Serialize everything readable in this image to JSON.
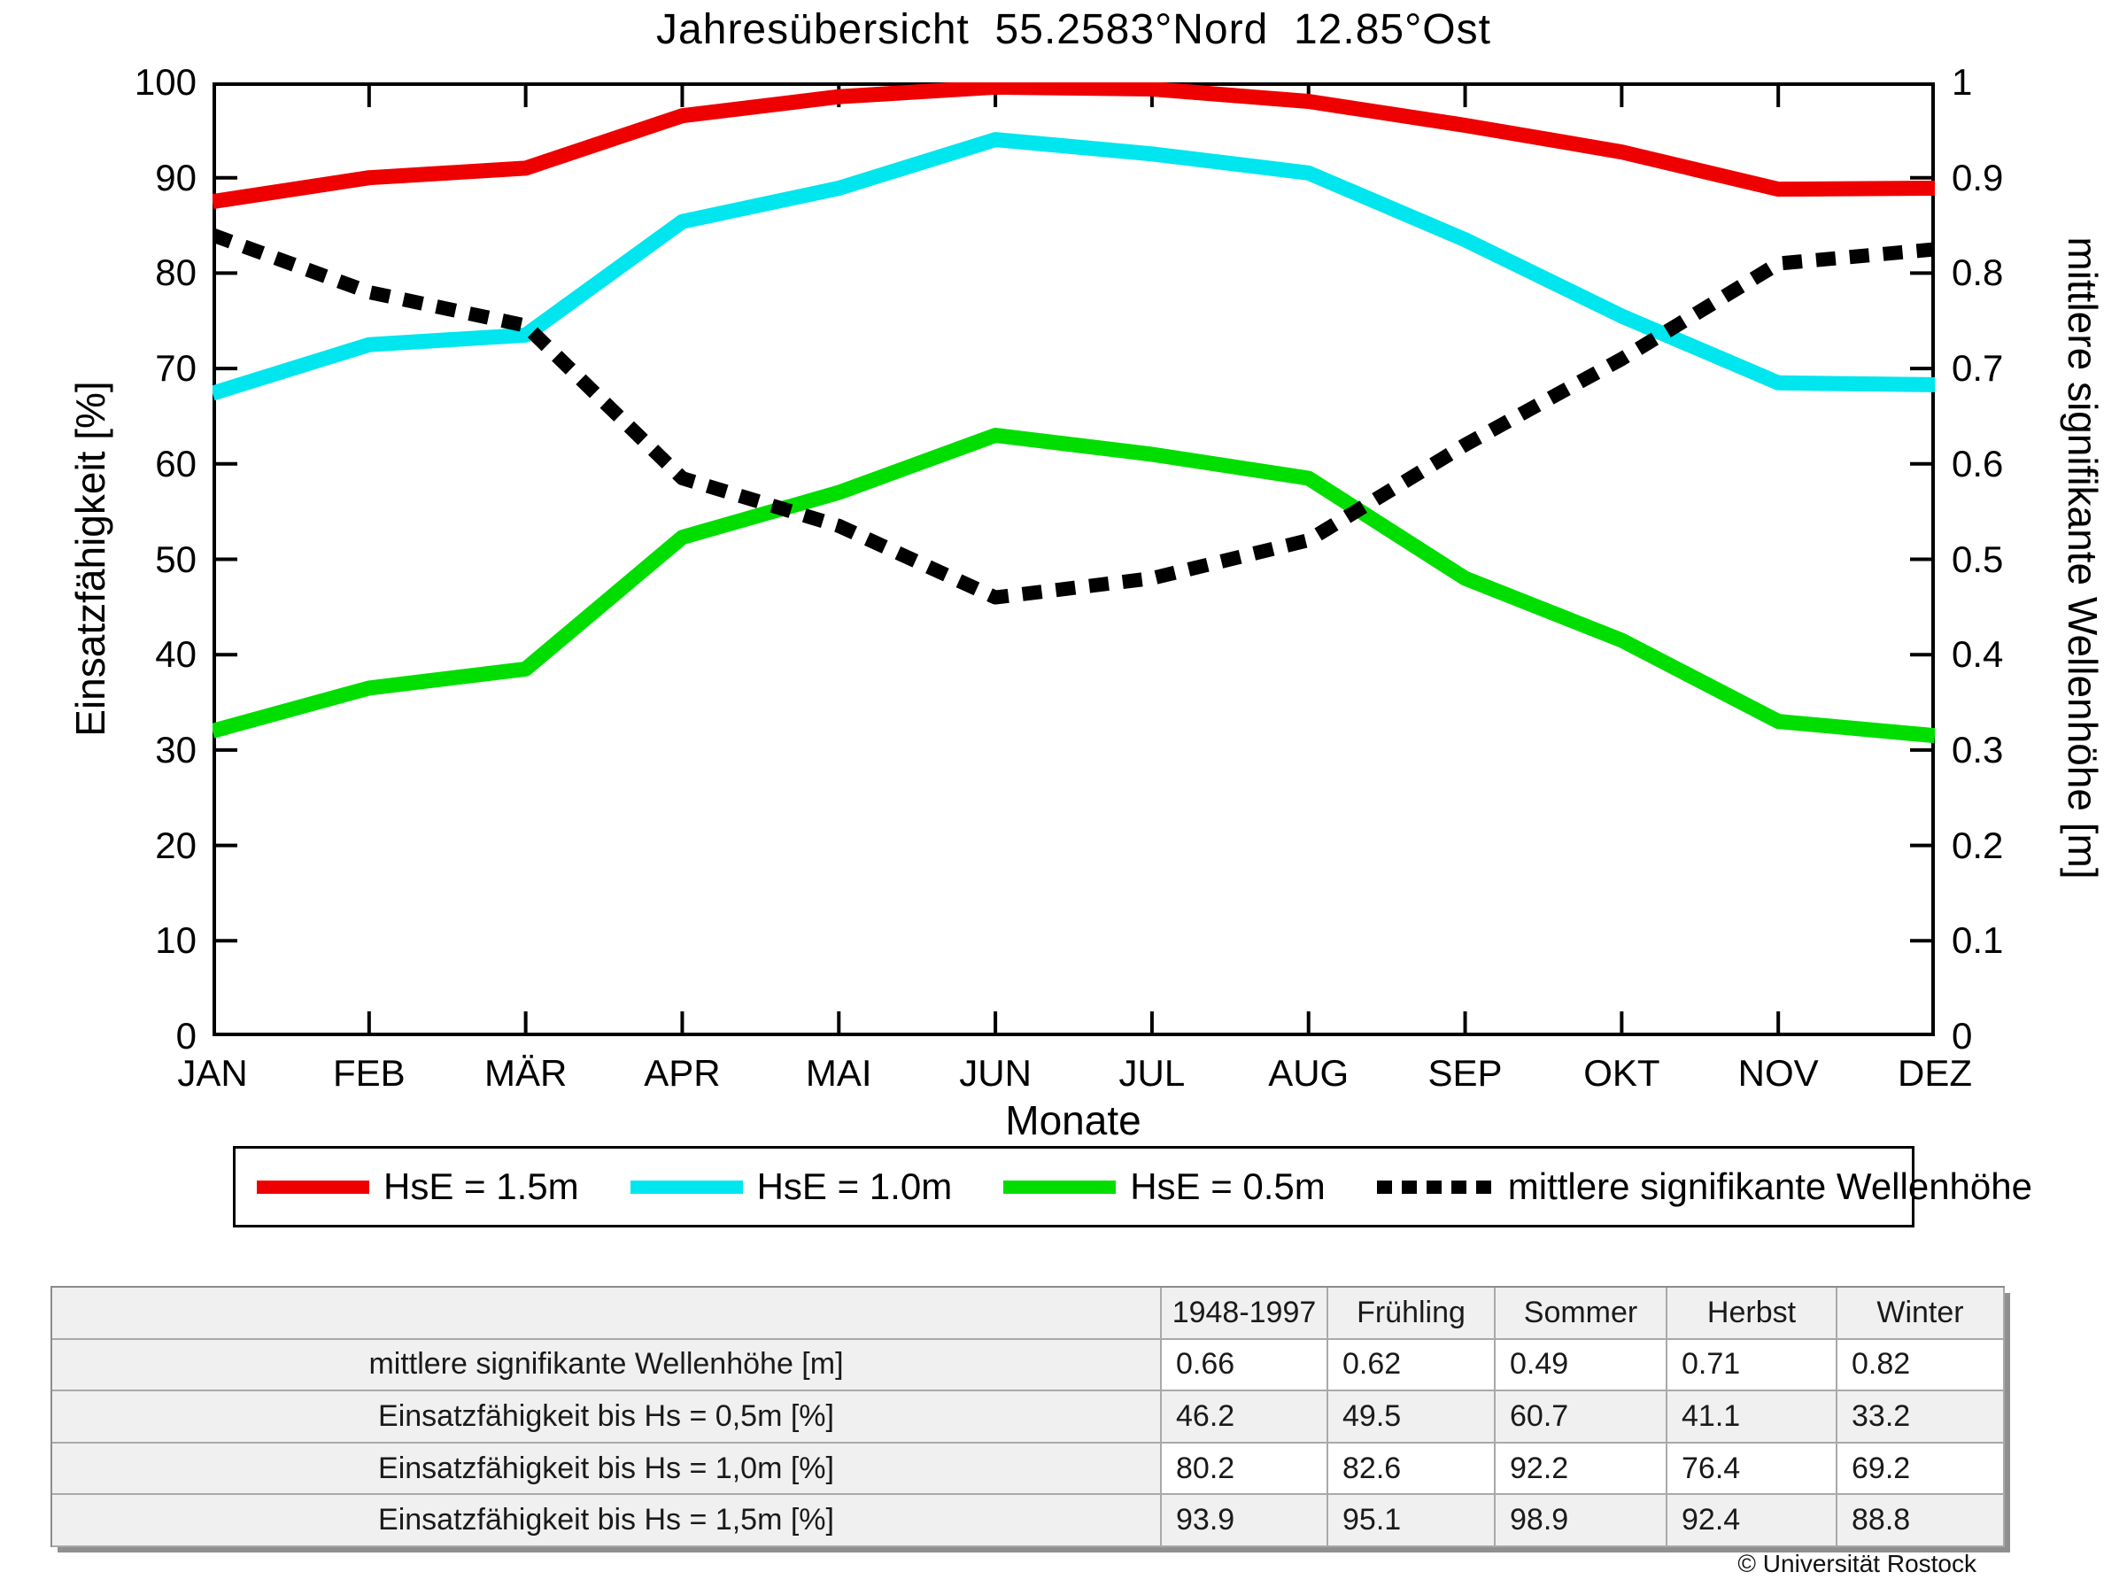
{
  "chart": {
    "title": "Jahresübersicht  55.2583°Nord  12.85°Ost",
    "xlabel": "Monate",
    "ylabel_left": "Einsatzfähigkeit [%]",
    "ylabel_right": "mittlere signifikante Wellenhöhe [m]"
  },
  "chart_data": {
    "type": "line",
    "categories": [
      "JAN",
      "FEB",
      "MÄR",
      "APR",
      "MAI",
      "JUN",
      "JUL",
      "AUG",
      "SEP",
      "OKT",
      "NOV",
      "DEZ"
    ],
    "series": [
      {
        "name": "HsE = 1.5m",
        "axis": "left",
        "color": "#ee0000",
        "style": "solid",
        "values": [
          87.5,
          90.0,
          91.0,
          96.5,
          98.5,
          99.5,
          99.3,
          98.0,
          95.5,
          92.7,
          88.8,
          88.9
        ]
      },
      {
        "name": "HsE = 1.0m",
        "axis": "left",
        "color": "#00e6ee",
        "style": "solid",
        "values": [
          67.4,
          72.5,
          73.5,
          85.4,
          88.9,
          94.0,
          92.5,
          90.5,
          83.5,
          75.5,
          68.5,
          68.3
        ]
      },
      {
        "name": "HsE = 0.5m",
        "axis": "left",
        "color": "#00de00",
        "style": "solid",
        "values": [
          32.0,
          36.5,
          38.5,
          52.3,
          57.0,
          63.0,
          61.0,
          58.5,
          48.0,
          41.5,
          33.0,
          31.5
        ]
      },
      {
        "name": "mittlere signifikante Wellenhöhe",
        "axis": "right",
        "color": "#000000",
        "style": "dotted",
        "values": [
          0.84,
          0.78,
          0.745,
          0.585,
          0.535,
          0.46,
          0.48,
          0.52,
          0.62,
          0.71,
          0.81,
          0.825
        ]
      }
    ],
    "ylim_left": [
      0,
      100
    ],
    "ylim_right": [
      0,
      1
    ],
    "yticks_left": [
      "0",
      "10",
      "20",
      "30",
      "40",
      "50",
      "60",
      "70",
      "80",
      "90",
      "100"
    ],
    "yticks_right": [
      "0",
      "0.1",
      "0.2",
      "0.3",
      "0.4",
      "0.5",
      "0.6",
      "0.7",
      "0.8",
      "0.9",
      "1"
    ],
    "grid": false,
    "legend_position": "bottom"
  },
  "table": {
    "column_headers": [
      "1948-1997",
      "Frühling",
      "Sommer",
      "Herbst",
      "Winter"
    ],
    "rows": [
      {
        "label": "mittlere signifikante Wellenhöhe [m]",
        "values": [
          "0.66",
          "0.62",
          "0.49",
          "0.71",
          "0.82"
        ]
      },
      {
        "label": "Einsatzfähigkeit bis Hs = 0,5m [%]",
        "values": [
          "46.2",
          "49.5",
          "60.7",
          "41.1",
          "33.2"
        ]
      },
      {
        "label": "Einsatzfähigkeit bis Hs = 1,0m [%]",
        "values": [
          "80.2",
          "82.6",
          "92.2",
          "76.4",
          "69.2"
        ]
      },
      {
        "label": "Einsatzfähigkeit bis Hs = 1,5m [%]",
        "values": [
          "93.9",
          "95.1",
          "98.9",
          "92.4",
          "88.8"
        ]
      }
    ]
  },
  "footer": {
    "copyright": "© Universität Rostock"
  }
}
